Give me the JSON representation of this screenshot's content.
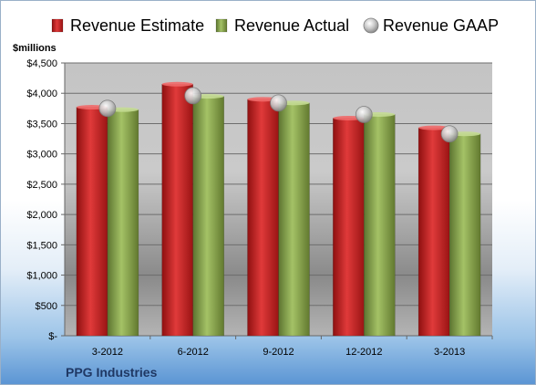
{
  "chart_data": {
    "type": "bar",
    "ylabel": "$millions",
    "caption": "PPG Industries",
    "categories": [
      "3-2012",
      "6-2012",
      "9-2012",
      "12-2012",
      "3-2013"
    ],
    "series": [
      {
        "name": "Revenue Estimate",
        "kind": "bar",
        "color": "#cc2222",
        "values": [
          3770,
          4150,
          3900,
          3590,
          3430
        ]
      },
      {
        "name": "Revenue Actual",
        "kind": "bar",
        "color": "#8aa64c",
        "values": [
          3730,
          3950,
          3840,
          3650,
          3330
        ]
      },
      {
        "name": "Revenue GAAP",
        "kind": "marker",
        "color": "#b0b0b0",
        "values": [
          3750,
          3960,
          3840,
          3650,
          3330
        ]
      }
    ],
    "ylim": [
      0,
      4500
    ],
    "yticks": [
      0,
      500,
      1000,
      1500,
      2000,
      2500,
      3000,
      3500,
      4000,
      4500
    ],
    "ytick_labels": [
      "$-",
      "$500",
      "$1,000",
      "$1,500",
      "$2,000",
      "$2,500",
      "$3,000",
      "$3,500",
      "$4,000",
      "$4,500"
    ],
    "grid": true,
    "legend_position": "top"
  }
}
